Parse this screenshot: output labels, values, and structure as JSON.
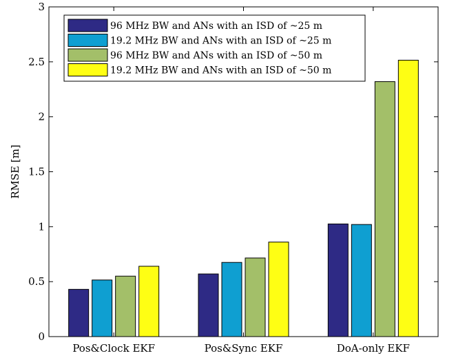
{
  "chart_data": {
    "type": "bar",
    "title": "",
    "xlabel": "",
    "ylabel": "RMSE [m]",
    "ylim": [
      0,
      3
    ],
    "yticks": [
      "0",
      "0.5",
      "1",
      "1.5",
      "2",
      "2.5",
      "3"
    ],
    "grid": false,
    "legend_position": "top-left",
    "categories": [
      "Pos&Clock EKF",
      "Pos&Sync EKF",
      "DoA-only EKF"
    ],
    "series": [
      {
        "name": "96 MHz BW and ANs with an ISD of ~25 m",
        "color": "#2e2a85",
        "values": [
          0.43,
          0.57,
          1.025
        ]
      },
      {
        "name": "19.2 MHz BW and ANs with an ISD of ~25 m",
        "color": "#0f9fd1",
        "values": [
          0.515,
          0.675,
          1.02
        ]
      },
      {
        "name": "96 MHz BW and ANs with an ISD of ~50 m",
        "color": "#a3bf69",
        "values": [
          0.55,
          0.715,
          2.32
        ]
      },
      {
        "name": "19.2 MHz BW and ANs with an ISD of ~50 m",
        "color": "#fefe14",
        "values": [
          0.64,
          0.86,
          2.515
        ]
      }
    ]
  }
}
